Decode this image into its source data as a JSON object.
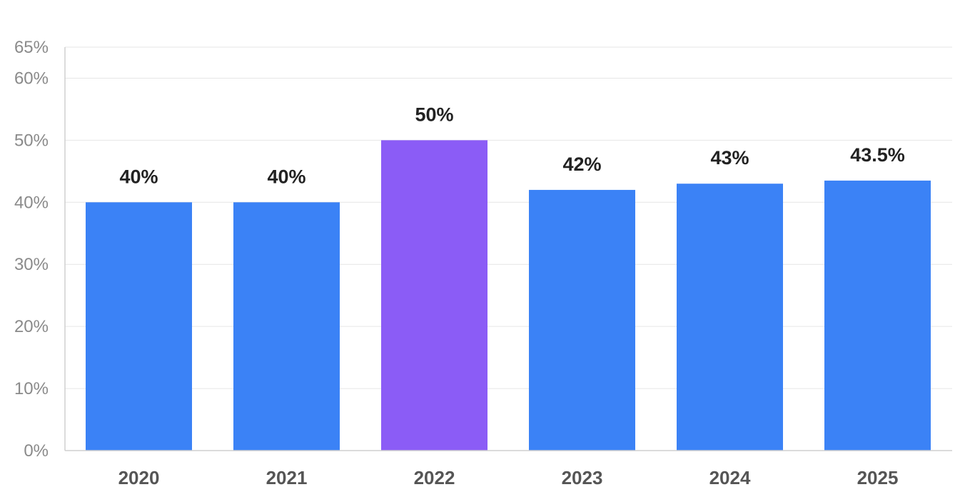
{
  "chart_data": {
    "type": "bar",
    "title": "",
    "xlabel": "",
    "ylabel": "",
    "categories": [
      "2020",
      "2021",
      "2022",
      "2023",
      "2024",
      "2025"
    ],
    "values": [
      40,
      40,
      50,
      42,
      43,
      43.5
    ],
    "data_labels": [
      "40%",
      "40%",
      "50%",
      "42%",
      "43%",
      "43.5%"
    ],
    "ylim": [
      0,
      65
    ],
    "yticks": [
      0,
      10,
      20,
      30,
      40,
      50,
      60,
      65
    ],
    "ytick_labels": [
      "0%",
      "10%",
      "20%",
      "30%",
      "40%",
      "50%",
      "60%",
      "65%"
    ],
    "grid": true,
    "legend": "none",
    "colors": {
      "default_bar": "#3b82f6",
      "highlight_bar": "#8b5cf6",
      "highlight_category": "2022",
      "grid": "#e6e6e6",
      "axis": "#cfcfcf",
      "tick_text": "#8a8a8a",
      "category_text": "#555555",
      "label_text": "#222222"
    }
  }
}
